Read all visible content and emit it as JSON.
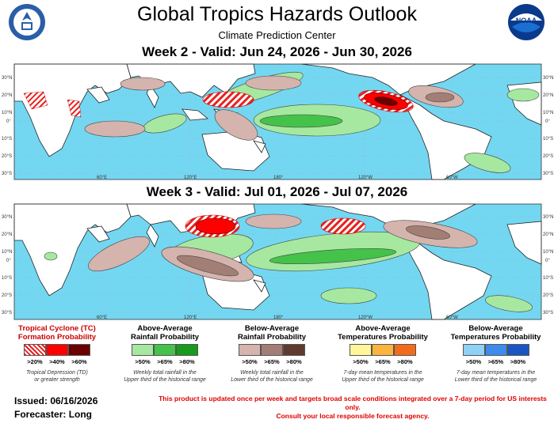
{
  "header": {
    "title": "Global Tropics Hazards Outlook",
    "subtitle": "Climate Prediction Center"
  },
  "logos": {
    "left": {
      "name": "department-of-commerce-seal",
      "text": "DEPARTMENT OF COMMERCE · UNITED STATES OF AMERICA"
    },
    "right": {
      "name": "noaa-logo",
      "text": "NOAA"
    }
  },
  "week2": {
    "heading": "Week 2 - Valid: Jun 24, 2026 - Jun 30, 2026"
  },
  "week3": {
    "heading": "Week 3 - Valid: Jul 01, 2026 - Jul 07, 2026"
  },
  "axes": {
    "lat_labels": [
      "30°N",
      "20°N",
      "10°N",
      "0°",
      "10°S",
      "20°S",
      "30°S"
    ],
    "lon_labels": [
      "60°E",
      "120°E",
      "180°",
      "120°W",
      "60°W"
    ]
  },
  "colors": {
    "ocean": "#73d7f2",
    "land": "#ffffff",
    "tc_20": "#e82020",
    "tc_40": "#ff0000",
    "tc_60": "#6b0000",
    "above_rain_50": "#a6e8a0",
    "above_rain_65": "#44c24a",
    "above_rain_80": "#179a1d",
    "below_rain_50": "#d4b4ad",
    "below_rain_65": "#a27e74",
    "below_rain_80": "#5e3a30",
    "above_temp_50": "#fff799",
    "above_temp_65": "#fbb43d",
    "above_temp_80": "#f26b1d",
    "below_temp_50": "#8fd1f7",
    "below_temp_65": "#3d8bea",
    "below_temp_80": "#1a55c4"
  },
  "legend": [
    {
      "title_line1": "Tropical Cyclone (TC)",
      "title_line2": "Formation Probability",
      "levels": [
        ">20%",
        ">40%",
        ">60%"
      ],
      "note_line1": "Tropical Depression (TD)",
      "note_line2": "or greater strength"
    },
    {
      "title_line1": "Above-Average",
      "title_line2": "Rainfall Probability",
      "levels": [
        ">50%",
        ">65%",
        ">80%"
      ],
      "note_line1": "Weekly total rainfall in the",
      "note_line2": "Upper third of the historical range"
    },
    {
      "title_line1": "Below-Average",
      "title_line2": "Rainfall Probability",
      "levels": [
        ">50%",
        ">65%",
        ">80%"
      ],
      "note_line1": "Weekly total rainfall in the",
      "note_line2": "Lower third of the historical range"
    },
    {
      "title_line1": "Above-Average",
      "title_line2": "Temperatures Probability",
      "levels": [
        ">50%",
        ">65%",
        ">80%"
      ],
      "note_line1": "7-day mean temperatures in the",
      "note_line2": "Upper third of the historical range"
    },
    {
      "title_line1": "Below-Average",
      "title_line2": "Temperatures Probability",
      "levels": [
        ">50%",
        ">65%",
        ">80%"
      ],
      "note_line1": "7-day mean temperatures in the",
      "note_line2": "Lower third of the historical range"
    }
  ],
  "footer": {
    "issued": "Issued: 06/16/2026",
    "forecaster": "Forecaster: Long",
    "disclaimer_line1": "This product is updated once per week and targets broad scale conditions integrated over a 7-day period for US interests only.",
    "disclaimer_line2": "Consult your local responsible forecast agency."
  }
}
